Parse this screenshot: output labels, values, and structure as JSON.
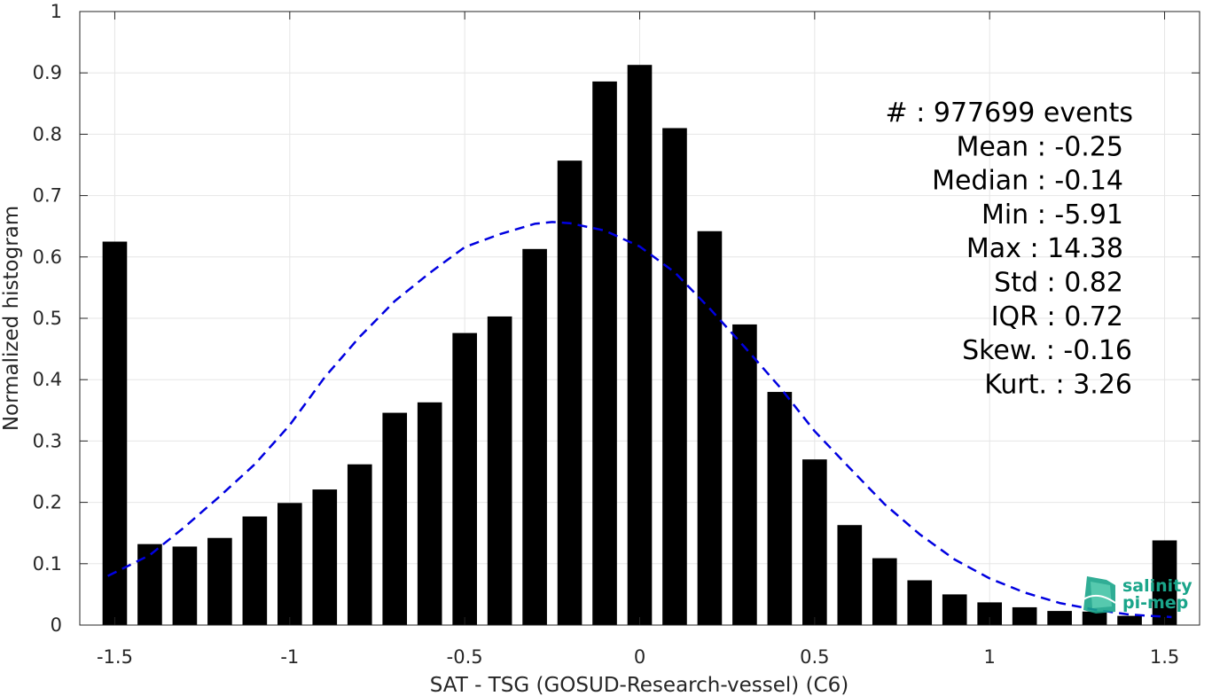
{
  "chart_data": {
    "type": "bar",
    "xlabel": "SAT - TSG (GOSUD-Research-vessel) (C6)",
    "ylabel": "Normalized histogram",
    "xlim": [
      -1.6,
      1.6
    ],
    "ylim": [
      0,
      1
    ],
    "grid": true,
    "x_ticks": [
      -1.5,
      -1,
      -0.5,
      0,
      0.5,
      1,
      1.5
    ],
    "x_tick_labels": [
      "-1.5",
      "-1",
      "-0.5",
      "0",
      "0.5",
      "1",
      "1.5"
    ],
    "y_ticks": [
      0,
      0.1,
      0.2,
      0.3,
      0.4,
      0.5,
      0.6,
      0.7,
      0.8,
      0.9,
      1
    ],
    "y_tick_labels": [
      "0",
      "0.1",
      "0.2",
      "0.3",
      "0.4",
      "0.5",
      "0.6",
      "0.7",
      "0.8",
      "0.9",
      "1"
    ],
    "bar_width": 0.07,
    "bar_color": "#000000",
    "x": [
      -1.5,
      -1.4,
      -1.3,
      -1.2,
      -1.1,
      -1.0,
      -0.9,
      -0.8,
      -0.7,
      -0.6,
      -0.5,
      -0.4,
      -0.3,
      -0.2,
      -0.1,
      0.0,
      0.1,
      0.2,
      0.3,
      0.4,
      0.5,
      0.6,
      0.7,
      0.8,
      0.9,
      1.0,
      1.1,
      1.2,
      1.3,
      1.4,
      1.5
    ],
    "values": [
      0.625,
      0.132,
      0.128,
      0.142,
      0.177,
      0.199,
      0.221,
      0.262,
      0.346,
      0.363,
      0.476,
      0.503,
      0.613,
      0.757,
      0.886,
      0.913,
      0.81,
      0.642,
      0.49,
      0.38,
      0.27,
      0.163,
      0.109,
      0.073,
      0.05,
      0.037,
      0.029,
      0.023,
      0.022,
      0.015,
      0.138
    ],
    "fit_curve": {
      "style": "dashed",
      "color": "#0000e0",
      "x": [
        -1.52,
        -1.4,
        -1.3,
        -1.2,
        -1.1,
        -1.0,
        -0.9,
        -0.8,
        -0.7,
        -0.6,
        -0.5,
        -0.4,
        -0.3,
        -0.25,
        -0.2,
        -0.1,
        0.0,
        0.1,
        0.2,
        0.3,
        0.4,
        0.5,
        0.6,
        0.7,
        0.8,
        0.9,
        1.0,
        1.1,
        1.2,
        1.3,
        1.4,
        1.52
      ],
      "y": [
        0.08,
        0.114,
        0.16,
        0.21,
        0.262,
        0.326,
        0.404,
        0.47,
        0.528,
        0.574,
        0.616,
        0.637,
        0.654,
        0.657,
        0.655,
        0.643,
        0.617,
        0.575,
        0.516,
        0.453,
        0.388,
        0.316,
        0.256,
        0.197,
        0.148,
        0.107,
        0.076,
        0.053,
        0.036,
        0.025,
        0.017,
        0.013
      ]
    },
    "annotations": [
      "#  : 977699 events",
      "Mean : -0.25",
      "Median : -0.14",
      "Min : -5.91",
      "Max : 14.38",
      "Std : 0.82",
      "IQR : 0.72",
      "Skew. : -0.16",
      "Kurt. : 3.26"
    ],
    "logo": {
      "line1": "salinity",
      "line2": "pi-mep",
      "color": "#1aa58a"
    }
  }
}
